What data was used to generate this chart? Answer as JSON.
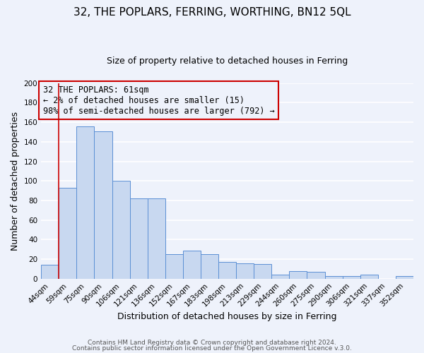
{
  "title": "32, THE POPLARS, FERRING, WORTHING, BN12 5QL",
  "subtitle": "Size of property relative to detached houses in Ferring",
  "xlabel": "Distribution of detached houses by size in Ferring",
  "ylabel": "Number of detached properties",
  "bar_color": "#c8d8f0",
  "bar_edge_color": "#5b8fd4",
  "categories": [
    "44sqm",
    "59sqm",
    "75sqm",
    "90sqm",
    "106sqm",
    "121sqm",
    "136sqm",
    "152sqm",
    "167sqm",
    "183sqm",
    "198sqm",
    "213sqm",
    "229sqm",
    "244sqm",
    "260sqm",
    "275sqm",
    "290sqm",
    "306sqm",
    "321sqm",
    "337sqm",
    "352sqm"
  ],
  "values": [
    14,
    93,
    156,
    151,
    100,
    82,
    82,
    25,
    29,
    25,
    17,
    16,
    15,
    4,
    8,
    7,
    3,
    3,
    4,
    0,
    3
  ],
  "ylim": [
    0,
    200
  ],
  "yticks": [
    0,
    20,
    40,
    60,
    80,
    100,
    120,
    140,
    160,
    180,
    200
  ],
  "annotation_line1": "32 THE POPLARS: 61sqm",
  "annotation_line2": "← 2% of detached houses are smaller (15)",
  "annotation_line3": "98% of semi-detached houses are larger (792) →",
  "annotation_box_edge": "#cc0000",
  "vline_color": "#cc0000",
  "vline_bar_index": 1,
  "footer1": "Contains HM Land Registry data © Crown copyright and database right 2024.",
  "footer2": "Contains public sector information licensed under the Open Government Licence v.3.0.",
  "background_color": "#eef2fb",
  "grid_color": "#ffffff",
  "title_fontsize": 11,
  "subtitle_fontsize": 9,
  "tick_fontsize": 7.5,
  "ylabel_fontsize": 9,
  "xlabel_fontsize": 9
}
